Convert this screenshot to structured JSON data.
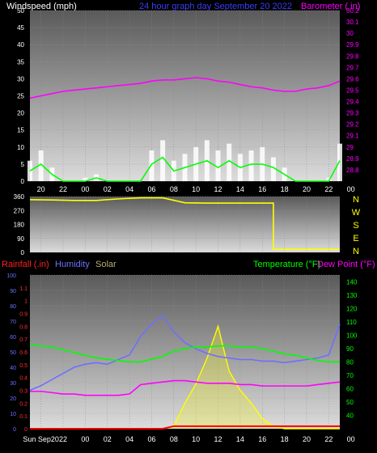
{
  "header": {
    "left": "Windspeed (mph)",
    "center": "24 hour graph day   September 20 2022",
    "right": "Barometer ( in)"
  },
  "legend": {
    "rainfall": "Rainfall (.in)",
    "humidity": "Humidity",
    "solar": "Solar",
    "temperature": "Temperature (°F)",
    "dewpoint": "Dew Point (°F)"
  },
  "colors": {
    "wind_avg": "#00ff00",
    "wind_gust": "#ffffff",
    "barometer": "#ff00ff",
    "direction": "#ffff00",
    "rain": "#ff0000",
    "humidity": "#6f6fff",
    "solar": "#ffff00",
    "temperature": "#00ff00",
    "dewpoint": "#ff00ff"
  },
  "chart_data": [
    {
      "type": "area",
      "id": "wind-barometer",
      "x_ticks": [
        "20",
        "22",
        "00",
        "02",
        "04",
        "06",
        "08",
        "10",
        "12",
        "14",
        "16",
        "18",
        "20",
        "22",
        "00"
      ],
      "left_axis": {
        "label": "Windspeed (mph)",
        "range": [
          0,
          50
        ],
        "ticks": [
          "0",
          "5",
          "10",
          "15",
          "20",
          "25",
          "30",
          "35",
          "40",
          "45",
          "50"
        ]
      },
      "right_axis": {
        "label": "Barometer ( in)",
        "range": [
          28.7,
          30.2
        ],
        "ticks": [
          "28.8",
          "28.9",
          "29",
          "29.1",
          "29.2",
          "29.3",
          "29.4",
          "29.5",
          "29.6",
          "29.7",
          "29.8",
          "29.9",
          "30",
          "30.1",
          "30.2"
        ]
      },
      "series": [
        {
          "name": "Barometer",
          "axis": "right",
          "x": [
            0,
            1,
            2,
            3,
            4,
            5,
            6,
            7,
            8,
            9,
            10,
            11,
            12,
            13,
            14,
            15,
            16,
            17,
            18,
            19,
            20,
            21,
            22,
            23,
            24,
            25,
            26,
            27,
            28
          ],
          "values": [
            29.43,
            29.45,
            29.47,
            29.49,
            29.5,
            29.51,
            29.52,
            29.53,
            29.54,
            29.55,
            29.56,
            29.58,
            29.59,
            29.59,
            29.6,
            29.61,
            29.6,
            29.58,
            29.57,
            29.55,
            29.53,
            29.52,
            29.5,
            29.49,
            29.49,
            29.51,
            29.52,
            29.54,
            29.58
          ]
        },
        {
          "name": "Wind gust",
          "axis": "left",
          "x": [
            0,
            1,
            2,
            3,
            4,
            5,
            6,
            7,
            8,
            9,
            10,
            11,
            12,
            13,
            14,
            15,
            16,
            17,
            18,
            19,
            20,
            21,
            22,
            23,
            24,
            25,
            26,
            27,
            28
          ],
          "values": [
            6,
            9,
            4,
            0,
            0,
            1,
            2,
            0,
            0,
            0,
            0,
            9,
            12,
            6,
            8,
            10,
            12,
            9,
            11,
            8,
            9,
            10,
            7,
            4,
            0,
            0,
            0,
            1,
            11
          ]
        },
        {
          "name": "Wind avg",
          "axis": "left",
          "x": [
            0,
            1,
            2,
            3,
            4,
            5,
            6,
            7,
            8,
            9,
            10,
            11,
            12,
            13,
            14,
            15,
            16,
            17,
            18,
            19,
            20,
            21,
            22,
            23,
            24,
            25,
            26,
            27,
            28
          ],
          "values": [
            3,
            5,
            2,
            0,
            0,
            0,
            1,
            0,
            0,
            0,
            0,
            5,
            7,
            3,
            4,
            5,
            6,
            4,
            6,
            4,
            5,
            5,
            4,
            2,
            0,
            0,
            0,
            0,
            6
          ]
        }
      ]
    },
    {
      "type": "line",
      "id": "wind-direction",
      "x_ticks": [
        "20",
        "22",
        "00",
        "02",
        "04",
        "06",
        "08",
        "10",
        "12",
        "14",
        "16",
        "18",
        "20",
        "22",
        "00"
      ],
      "y_range": [
        0,
        360
      ],
      "y_ticks": [
        "0",
        "90",
        "180",
        "270",
        "360"
      ],
      "compass": [
        "N",
        "W",
        "S",
        "E",
        "N"
      ],
      "series": [
        {
          "name": "Wind direction",
          "x": [
            0,
            2,
            4,
            6,
            8,
            10,
            12,
            14,
            16,
            18,
            19,
            20,
            22,
            24,
            26,
            28
          ],
          "values": [
            340,
            338,
            335,
            335,
            345,
            352,
            352,
            320,
            318,
            318,
            318,
            318,
            20,
            20,
            20,
            20
          ]
        }
      ]
    },
    {
      "type": "line",
      "id": "rain-humidity-solar-temperature",
      "x_ticks": [
        "Sun Sep20",
        "22",
        "00",
        "02",
        "04",
        "06",
        "08",
        "10",
        "12",
        "14",
        "16",
        "18",
        "20",
        "22",
        "00"
      ],
      "humidity_axis": {
        "range": [
          0,
          100
        ],
        "ticks": [
          "0",
          "10",
          "20",
          "30",
          "40",
          "50",
          "60",
          "70",
          "80",
          "90",
          "100"
        ]
      },
      "rain_axis": {
        "range": [
          0,
          1.2
        ],
        "ticks": [
          "0",
          "0.1",
          "0.2",
          "0.3",
          "0.4",
          "0.5",
          "0.6",
          "0.7",
          "0.8",
          "0.9",
          "1",
          "1.1"
        ]
      },
      "temp_axis": {
        "range": [
          30,
          145
        ],
        "ticks": [
          "40",
          "50",
          "60",
          "70",
          "80",
          "90",
          "100",
          "110",
          "120",
          "130",
          "140"
        ]
      },
      "series": [
        {
          "name": "Humidity",
          "axis": "humidity",
          "x": [
            0,
            1,
            2,
            3,
            4,
            5,
            6,
            7,
            8,
            9,
            10,
            11,
            12,
            13,
            14,
            15,
            16,
            17,
            18,
            19,
            20,
            21,
            22,
            23,
            24,
            25,
            26,
            27,
            28
          ],
          "values": [
            25,
            28,
            32,
            36,
            40,
            42,
            43,
            42,
            45,
            48,
            60,
            68,
            74,
            63,
            56,
            52,
            49,
            47,
            46,
            45,
            45,
            44,
            44,
            43,
            44,
            45,
            46,
            48,
            68
          ]
        },
        {
          "name": "Dew Point",
          "axis": "temp",
          "x": [
            0,
            1,
            2,
            3,
            4,
            5,
            6,
            7,
            8,
            9,
            10,
            11,
            12,
            13,
            14,
            15,
            16,
            17,
            18,
            19,
            20,
            21,
            22,
            23,
            24,
            25,
            26,
            27,
            28
          ],
          "values": [
            58,
            58,
            57,
            56,
            56,
            55,
            55,
            55,
            55,
            56,
            63,
            64,
            65,
            66,
            66,
            65,
            64,
            64,
            64,
            63,
            63,
            62,
            62,
            62,
            62,
            62,
            63,
            64,
            65
          ]
        },
        {
          "name": "Temperature",
          "axis": "temp",
          "x": [
            0,
            1,
            2,
            3,
            4,
            5,
            6,
            7,
            8,
            9,
            10,
            11,
            12,
            13,
            14,
            15,
            16,
            17,
            18,
            19,
            20,
            21,
            22,
            23,
            24,
            25,
            26,
            27,
            28
          ],
          "values": [
            93,
            92,
            91,
            89,
            87,
            85,
            83,
            82,
            81,
            80,
            80,
            82,
            84,
            88,
            90,
            91,
            91,
            92,
            92,
            91,
            91,
            90,
            88,
            86,
            85,
            83,
            81,
            80,
            80
          ]
        },
        {
          "name": "Solar",
          "axis": "rain",
          "x": [
            0,
            4,
            8,
            12,
            13,
            14,
            15,
            16,
            17,
            18,
            19,
            20,
            21,
            22,
            23,
            24,
            28
          ],
          "values": [
            0,
            0,
            0,
            0,
            0.02,
            0.2,
            0.35,
            0.55,
            0.8,
            0.45,
            0.3,
            0.2,
            0.08,
            0.02,
            0,
            0,
            0
          ]
        },
        {
          "name": "Rainfall",
          "axis": "rain",
          "x": [
            0,
            12,
            13,
            28
          ],
          "values": [
            0,
            0,
            0.02,
            0.02
          ]
        }
      ]
    }
  ]
}
